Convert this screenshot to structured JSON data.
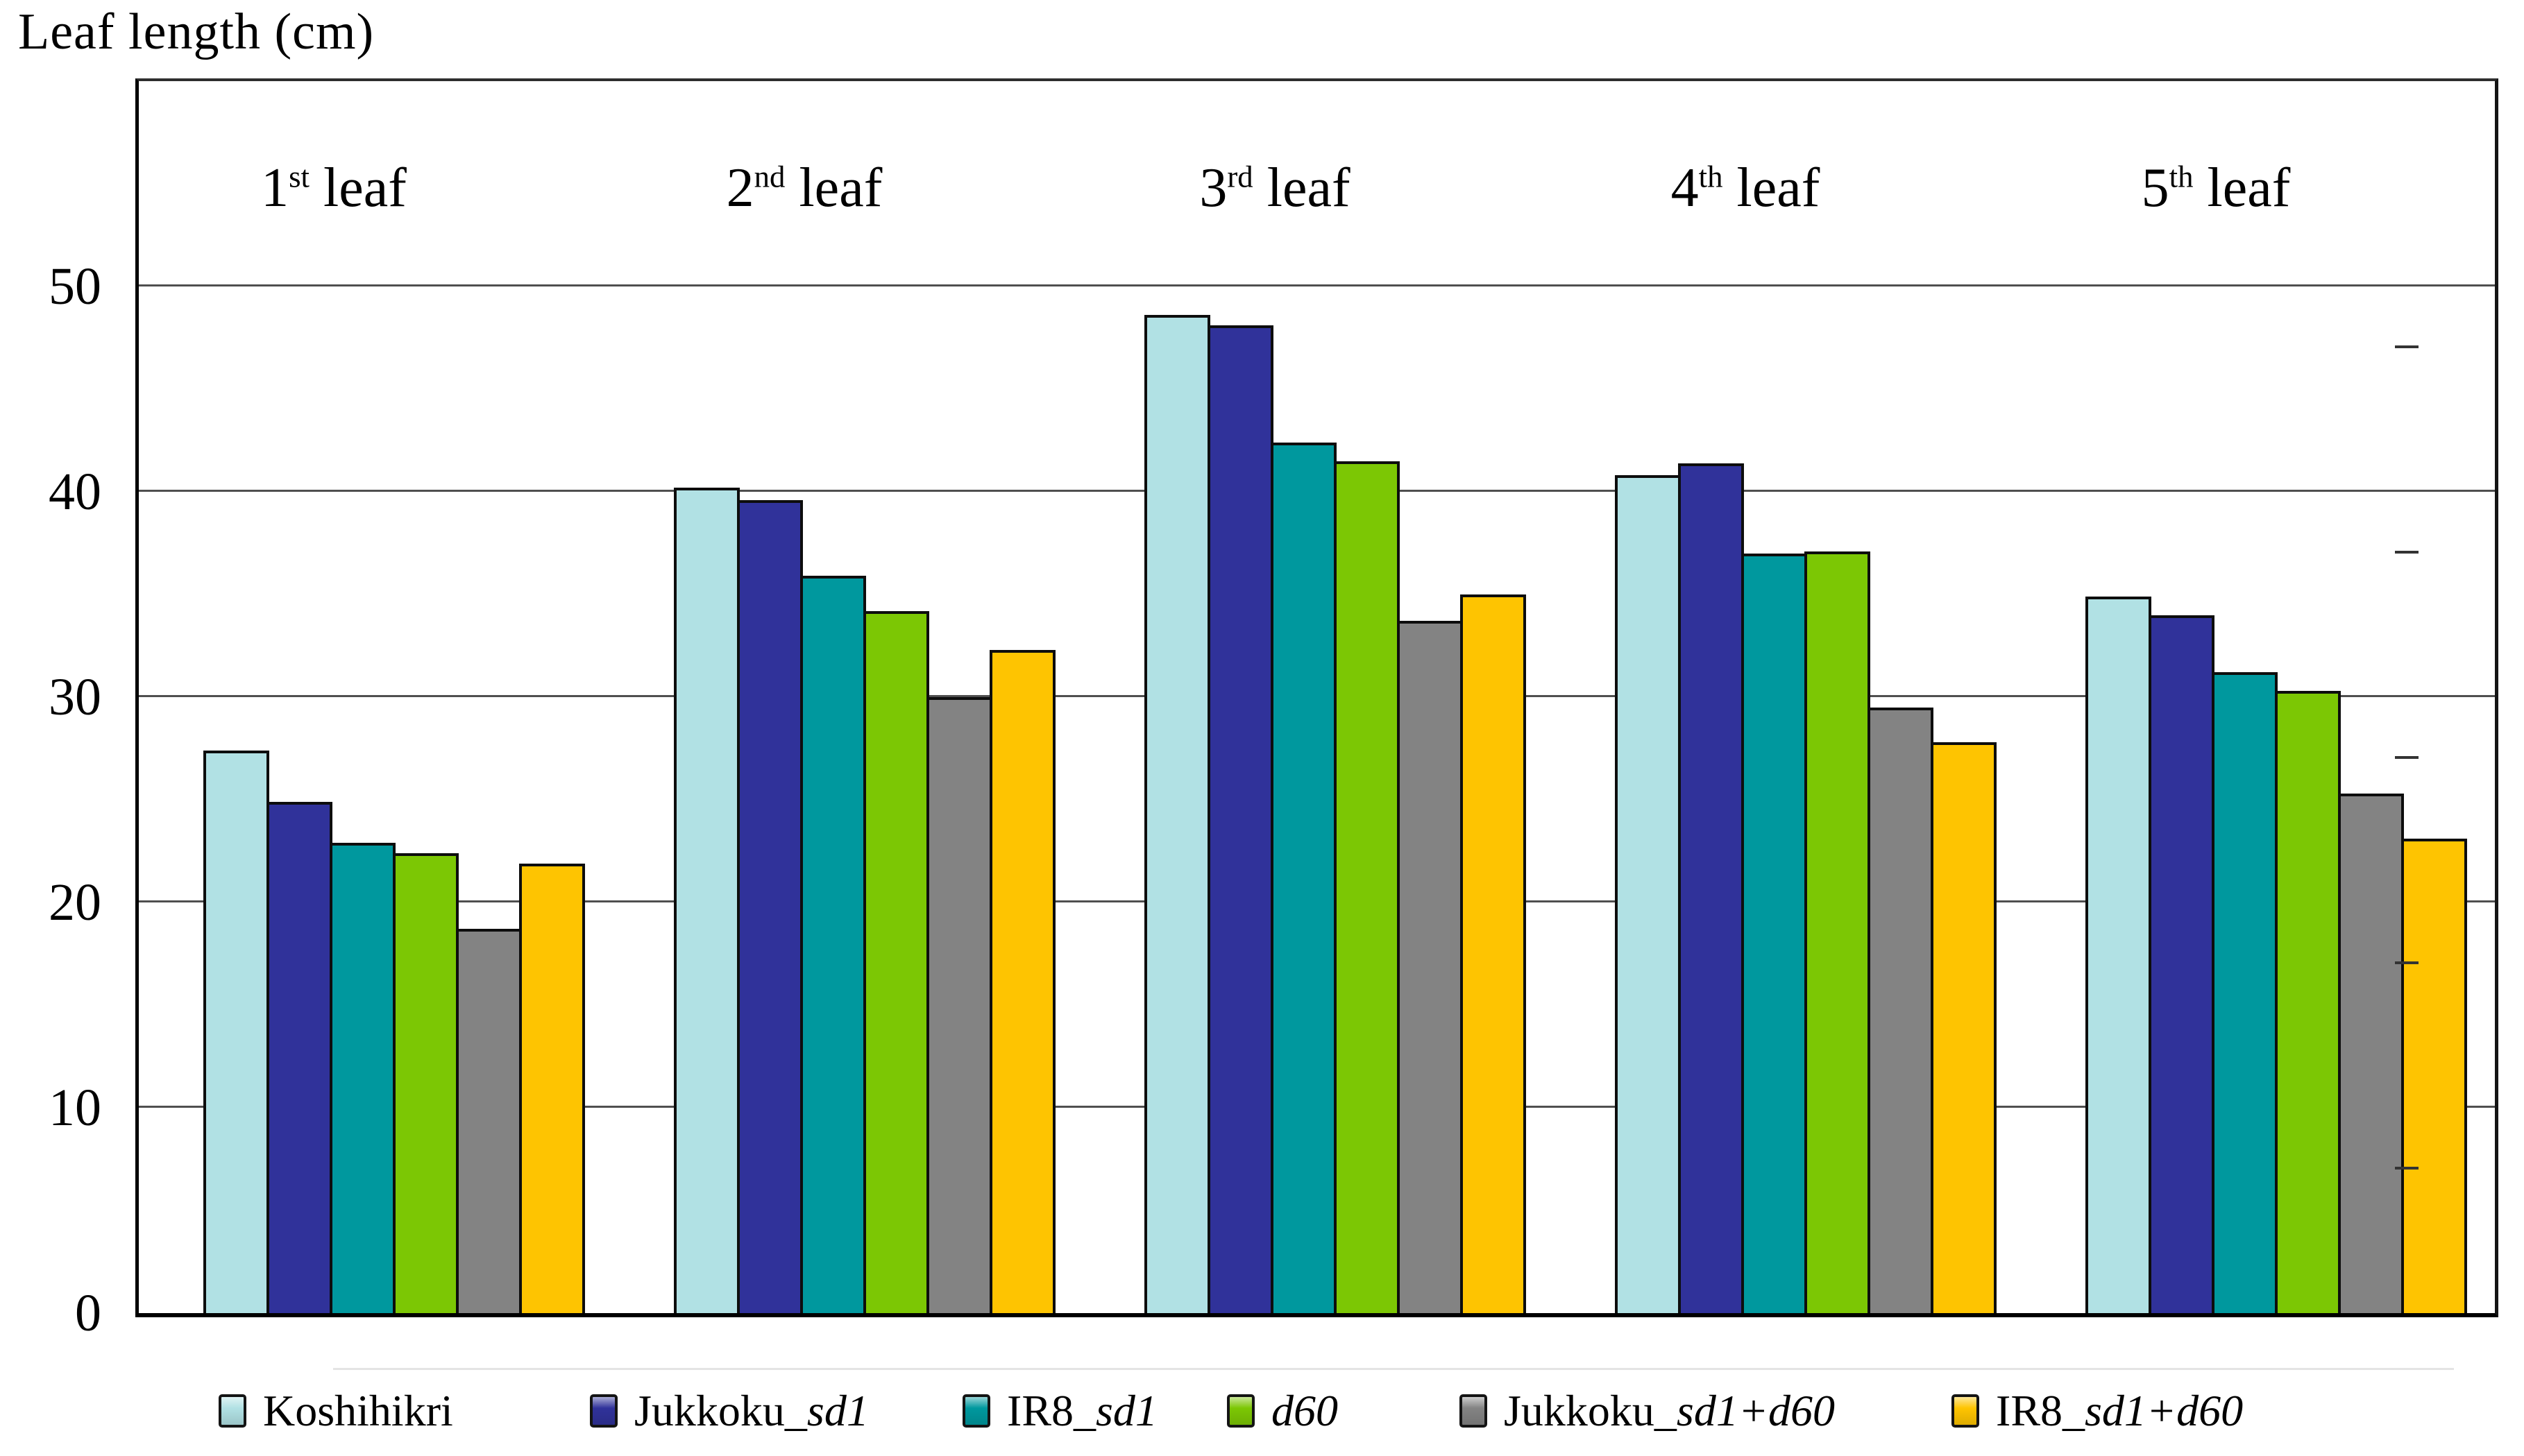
{
  "chart_data": {
    "type": "bar",
    "title": "Leaf length (cm)",
    "ylabel": "Leaf length (cm)",
    "ylim": [
      0,
      60
    ],
    "yticks": [
      "0",
      "10",
      "20",
      "30",
      "40",
      "50"
    ],
    "grid": "horizontal gridlines at labeled ticks",
    "legend_position": "bottom",
    "categories": [
      "1st leaf",
      "2nd leaf",
      "3rd leaf",
      "4th leaf",
      "5th leaf"
    ],
    "category_parts": [
      {
        "ordinal": "1",
        "sup": "st",
        "rest": " leaf"
      },
      {
        "ordinal": "2",
        "sup": "nd",
        "rest": " leaf"
      },
      {
        "ordinal": "3",
        "sup": "rd",
        "rest": " leaf"
      },
      {
        "ordinal": "4",
        "sup": "th",
        "rest": " leaf"
      },
      {
        "ordinal": "5",
        "sup": "th",
        "rest": " leaf"
      }
    ],
    "series": [
      {
        "name": "Koshihikri",
        "name_prefix": "Koshihikri",
        "name_italic": "",
        "color": "#b1e1e4",
        "values": [
          27.4,
          40.2,
          48.6,
          40.8,
          34.9
        ]
      },
      {
        "name": "Jukkoku_sd1",
        "name_prefix": "Jukkoku_",
        "name_italic": "sd1",
        "color": "#30329a",
        "values": [
          24.9,
          39.6,
          48.1,
          41.4,
          34.0
        ]
      },
      {
        "name": "IR8_sd1",
        "name_prefix": "IR8_",
        "name_italic": "sd1",
        "color": "#00989e",
        "values": [
          22.9,
          35.9,
          42.4,
          37.0,
          31.2
        ]
      },
      {
        "name": "d60",
        "name_prefix": "",
        "name_italic": "d60",
        "color": "#7cc704",
        "values": [
          22.4,
          34.2,
          41.5,
          37.1,
          30.3
        ]
      },
      {
        "name": "Jukkoku_sd1+d60",
        "name_prefix": "Jukkoku_",
        "name_italic": "sd1+d60",
        "color": "#838383",
        "values": [
          18.7,
          30.0,
          33.7,
          29.5,
          25.3
        ]
      },
      {
        "name": "IR8_sd1+d60",
        "name_prefix": "IR8_",
        "name_italic": "sd1+d60",
        "color": "#fec401",
        "values": [
          21.9,
          32.3,
          35.0,
          27.8,
          23.1
        ]
      }
    ],
    "colors": {
      "axis": "#000000",
      "gridline": "#4f4f4f",
      "bar_border": "#0d0d0d",
      "background": "#ffffff"
    }
  }
}
